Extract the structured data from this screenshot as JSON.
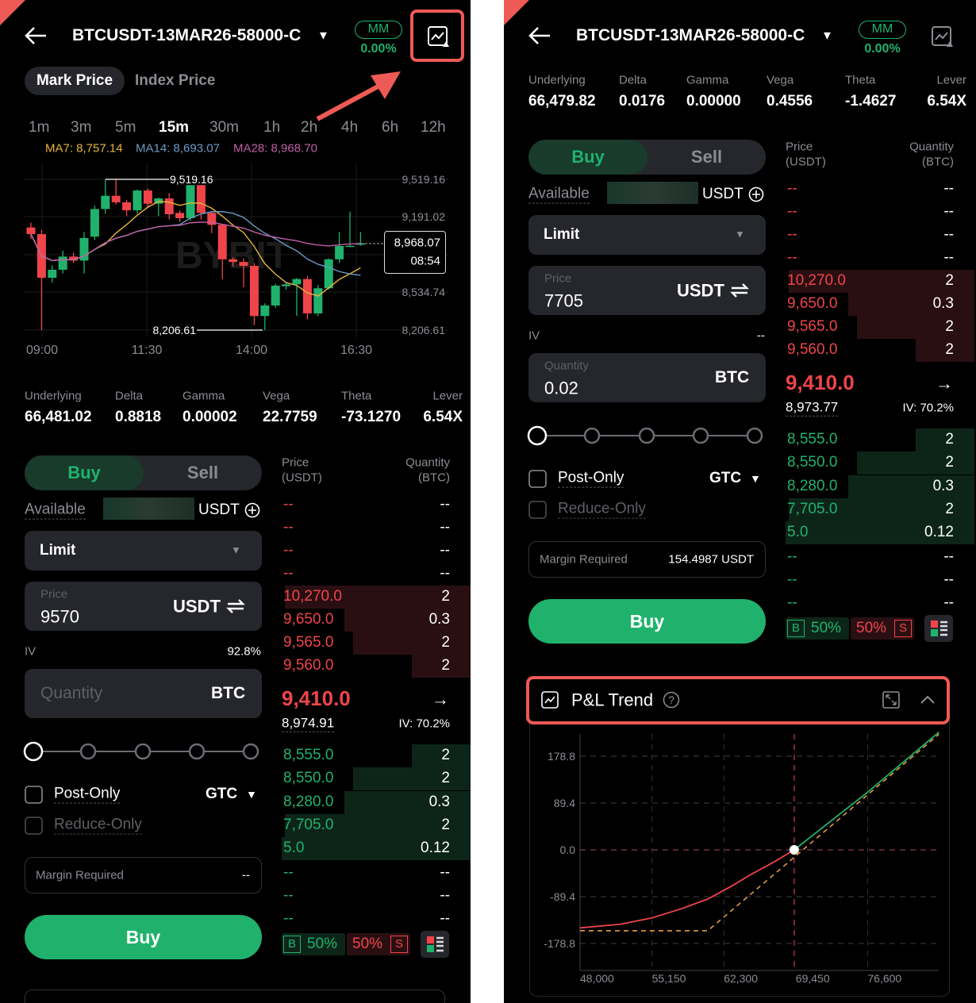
{
  "colors": {
    "bg": "#000000",
    "green": "#20b26c",
    "red": "#ef454a",
    "gray": "#8a8d93",
    "annotation": "#ee5a55",
    "ma7": "#e8b53a",
    "ma14": "#6b9cc6",
    "ma28": "#c05fa8"
  },
  "icons": {
    "back": "arrow-left-icon",
    "chart": "line-chart-icon",
    "plus": "plus-circle-icon",
    "swap": "swap-icon",
    "dropdown": "caret-down-icon",
    "arrow": "arrow-right-icon",
    "layout": "orderbook-layout-icon",
    "help": "help-circle-icon",
    "expand": "expand-icon",
    "collapse": "chevron-up-icon"
  },
  "panels": [
    {
      "title": "BTCUSDT-13MAR26-58000-C",
      "mm_label": "MM",
      "mm_value": "0.00%",
      "price_tabs": [
        "Mark Price",
        "Index Price"
      ],
      "intervals": [
        "1m",
        "3m",
        "5m",
        "15m",
        "30m",
        "1h",
        "2h",
        "4h",
        "6h",
        "12h"
      ],
      "active_interval": "15m",
      "ma": {
        "ma7": "MA7: 8,757.14",
        "ma14": "MA14: 8,693.07",
        "ma28": "MA28: 8,968.70"
      },
      "chart": {
        "watermark": "BYBIT",
        "y_ticks": [
          "9,519.16",
          "9,191.02",
          "8,534.74",
          "8,206.61"
        ],
        "x_ticks": [
          "09:00",
          "11:30",
          "14:00",
          "16:30"
        ],
        "high_label": "9,519.16",
        "low_label": "8,206.61",
        "last_price": "8,968.07",
        "last_time": "08:54",
        "candles": [
          [
            9100,
            9140,
            9000,
            9042
          ],
          [
            9042,
            9080,
            8206.61,
            8662
          ],
          [
            8662,
            8770,
            8620,
            8732
          ],
          [
            8732,
            8900,
            8700,
            8847
          ],
          [
            8847,
            8880,
            8790,
            8812
          ],
          [
            8812,
            9060,
            8700,
            9008
          ],
          [
            9020,
            9290,
            8990,
            9261
          ],
          [
            9261,
            9519.16,
            9220,
            9376
          ],
          [
            9376,
            9519,
            9300,
            9319
          ],
          [
            9319,
            9340,
            9200,
            9250
          ],
          [
            9250,
            9430,
            9220,
            9422
          ],
          [
            9422,
            9440,
            9270,
            9307
          ],
          [
            9307,
            9360,
            9200,
            9353
          ],
          [
            9353,
            9400,
            9170,
            9215
          ],
          [
            9227,
            9250,
            9150,
            9181
          ],
          [
            9181,
            9469,
            9160,
            9469
          ],
          [
            9469,
            9469,
            9170,
            9227
          ],
          [
            9227,
            9240,
            9050,
            9123
          ],
          [
            9123,
            9130,
            8650,
            8823
          ],
          [
            8823,
            8840,
            8760,
            8800
          ],
          [
            8800,
            8830,
            8580,
            8766
          ],
          [
            8766,
            8790,
            8250,
            8329
          ],
          [
            8329,
            8440,
            8206.61,
            8421
          ],
          [
            8421,
            8610,
            8400,
            8594
          ],
          [
            8589,
            8620,
            8560,
            8605
          ],
          [
            8605,
            8660,
            8330,
            8651
          ],
          [
            8651,
            8680,
            8300,
            8352
          ],
          [
            8352,
            8600,
            8330,
            8571
          ],
          [
            8571,
            8830,
            8560,
            8823
          ],
          [
            8823,
            9060,
            8790,
            8939
          ],
          [
            8935,
            9238,
            8930,
            8940
          ],
          [
            8950,
            9060,
            8940,
            8962
          ]
        ]
      },
      "greeks": [
        {
          "label": "Underlying",
          "value": "66,481.02"
        },
        {
          "label": "Delta",
          "value": "0.8818"
        },
        {
          "label": "Gamma",
          "value": "0.00002"
        },
        {
          "label": "Vega",
          "value": "22.7759"
        },
        {
          "label": "Theta",
          "value": "-73.1270"
        },
        {
          "label": "Lever",
          "value": "6.54X"
        }
      ],
      "form": {
        "buy": "Buy",
        "sell": "Sell",
        "available_label": "Available",
        "available_currency": "USDT",
        "order_type": "Limit",
        "price_label": "Price",
        "price_value": "9570",
        "price_currency": "USDT",
        "iv_label": "IV",
        "iv_value": "92.8%",
        "quantity_label": "",
        "quantity_placeholder": "Quantity",
        "quantity_value": "",
        "quantity_currency": "BTC",
        "post_only": "Post-Only",
        "tif": "GTC",
        "reduce_only": "Reduce-Only",
        "margin_label": "Margin Required",
        "margin_value": "--",
        "submit": "Buy"
      },
      "orderbook": {
        "price_header": "Price",
        "price_unit": "(USDT)",
        "qty_header": "Quantity",
        "qty_unit": "(BTC)",
        "asks": [
          {
            "price": "--",
            "qty": "--"
          },
          {
            "price": "--",
            "qty": "--"
          },
          {
            "price": "--",
            "qty": "--"
          },
          {
            "price": "--",
            "qty": "--"
          },
          {
            "price": "10,270.0",
            "qty": "2"
          },
          {
            "price": "9,650.0",
            "qty": "0.3"
          },
          {
            "price": "9,565.0",
            "qty": "2"
          },
          {
            "price": "9,560.0",
            "qty": "2"
          }
        ],
        "last_price": "9,410.0",
        "mark_price": "8,974.91",
        "iv": "IV: 70.2%",
        "bids": [
          {
            "price": "8,555.0",
            "qty": "2"
          },
          {
            "price": "8,550.0",
            "qty": "2"
          },
          {
            "price": "8,280.0",
            "qty": "0.3"
          },
          {
            "price": "7,705.0",
            "qty": "2"
          },
          {
            "price": "5.0",
            "qty": "0.12"
          },
          {
            "price": "--",
            "qty": "--"
          },
          {
            "price": "--",
            "qty": "--"
          },
          {
            "price": "--",
            "qty": "--"
          }
        ],
        "b": "B",
        "buy_ratio": "50%",
        "sell_ratio": "50%",
        "s": "S"
      }
    },
    {
      "title": "BTCUSDT-13MAR26-58000-C",
      "mm_label": "MM",
      "mm_value": "0.00%",
      "greeks": [
        {
          "label": "Underlying",
          "value": "66,479.82"
        },
        {
          "label": "Delta",
          "value": "0.0176"
        },
        {
          "label": "Gamma",
          "value": "0.00000"
        },
        {
          "label": "Vega",
          "value": "0.4556"
        },
        {
          "label": "Theta",
          "value": "-1.4627"
        },
        {
          "label": "Lever",
          "value": "6.54X"
        }
      ],
      "form": {
        "buy": "Buy",
        "sell": "Sell",
        "available_label": "Available",
        "available_currency": "USDT",
        "order_type": "Limit",
        "price_label": "Price",
        "price_value": "7705",
        "price_currency": "USDT",
        "iv_label": "IV",
        "iv_value": "--",
        "quantity_label": "Quantity",
        "quantity_placeholder": "",
        "quantity_value": "0.02",
        "quantity_currency": "BTC",
        "post_only": "Post-Only",
        "tif": "GTC",
        "reduce_only": "Reduce-Only",
        "margin_label": "Margin Required",
        "margin_value": "154.4987 USDT",
        "submit": "Buy"
      },
      "orderbook": {
        "price_header": "Price",
        "price_unit": "(USDT)",
        "qty_header": "Quantity",
        "qty_unit": "(BTC)",
        "asks": [
          {
            "price": "--",
            "qty": "--"
          },
          {
            "price": "--",
            "qty": "--"
          },
          {
            "price": "--",
            "qty": "--"
          },
          {
            "price": "--",
            "qty": "--"
          },
          {
            "price": "10,270.0",
            "qty": "2"
          },
          {
            "price": "9,650.0",
            "qty": "0.3"
          },
          {
            "price": "9,565.0",
            "qty": "2"
          },
          {
            "price": "9,560.0",
            "qty": "2"
          }
        ],
        "last_price": "9,410.0",
        "mark_price": "8,973.77",
        "iv": "IV: 70.2%",
        "bids": [
          {
            "price": "8,555.0",
            "qty": "2"
          },
          {
            "price": "8,550.0",
            "qty": "2"
          },
          {
            "price": "8,280.0",
            "qty": "0.3"
          },
          {
            "price": "7,705.0",
            "qty": "2"
          },
          {
            "price": "5.0",
            "qty": "0.12"
          },
          {
            "price": "--",
            "qty": "--"
          },
          {
            "price": "--",
            "qty": "--"
          },
          {
            "price": "--",
            "qty": "--"
          }
        ],
        "b": "B",
        "buy_ratio": "50%",
        "sell_ratio": "50%",
        "s": "S"
      },
      "pnl": {
        "title": "P&L Trend",
        "y_ticks": [
          178.8,
          89.4,
          0.0,
          -89.4,
          -178.8
        ],
        "y_labels": [
          "178.8",
          "89.4",
          "0.0",
          "-89.4",
          "-178.8"
        ],
        "x_ticks": [
          48000,
          55150,
          62300,
          69450,
          76600
        ],
        "x_labels": [
          "48,000",
          "55,150",
          "62,300",
          "69,450",
          "76,600"
        ],
        "expiry_curve": [
          [
            48000,
            -154.5
          ],
          [
            60700,
            -154.5
          ],
          [
            83700,
            221
          ]
        ],
        "current_curve": [
          [
            48000,
            -149
          ],
          [
            52000,
            -142
          ],
          [
            55150,
            -130
          ],
          [
            58000,
            -113
          ],
          [
            60700,
            -94
          ],
          [
            63000,
            -70
          ],
          [
            65000,
            -47
          ],
          [
            67300,
            -23
          ],
          [
            69300,
            0
          ],
          [
            76600,
            110
          ],
          [
            83700,
            225
          ]
        ],
        "marker": [
          69300,
          0
        ]
      }
    }
  ]
}
